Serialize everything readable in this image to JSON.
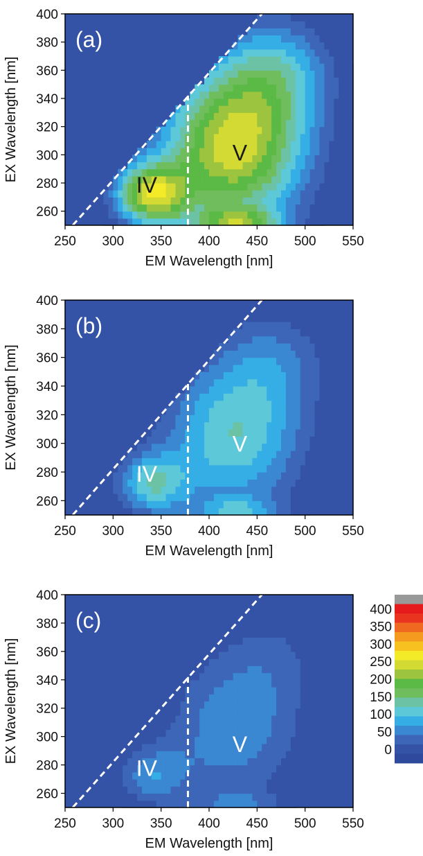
{
  "chart_data": {
    "type": "heatmap",
    "description_kind": "excitation-emission contour maps",
    "xlabel": "EM Wavelength [nm]",
    "ylabel": "EX Wavelength [nm]",
    "xlim": [
      250,
      550
    ],
    "ylim": [
      250,
      400
    ],
    "xticks": [
      250,
      300,
      350,
      400,
      450,
      500,
      550
    ],
    "yticks": [
      260,
      280,
      300,
      320,
      340,
      360,
      380,
      400
    ],
    "divider": {
      "diagonal_from": [
        258,
        250
      ],
      "diagonal_to": [
        455,
        400
      ],
      "vertical_x": 378,
      "vertical_from_y": 250,
      "vertical_to_y": 342
    },
    "colorbar": {
      "ticks": [
        0,
        50,
        100,
        150,
        200,
        250,
        300,
        350,
        400
      ],
      "colors": [
        "#2f4a9c",
        "#3453a6",
        "#3d66b8",
        "#3a87d2",
        "#35aee6",
        "#5cc8d8",
        "#6cc2a4",
        "#6fbd5c",
        "#5bb945",
        "#9cc43e",
        "#d4da34",
        "#f3ea28",
        "#f7c21f",
        "#f39a1f",
        "#ef6a20",
        "#e93520",
        "#e51a1c",
        "#999999"
      ]
    },
    "panels": [
      {
        "label": "(a)",
        "regions": [
          {
            "name": "IV",
            "x": 335,
            "y": 279
          },
          {
            "name": "V",
            "x": 432,
            "y": 302
          }
        ],
        "intensity_scale": 1.0
      },
      {
        "label": "(b)",
        "regions": [
          {
            "name": "IV",
            "x": 335,
            "y": 279
          },
          {
            "name": "V",
            "x": 432,
            "y": 300
          }
        ],
        "intensity_scale": 0.55
      },
      {
        "label": "(c)",
        "regions": [
          {
            "name": "IV",
            "x": 335,
            "y": 278
          },
          {
            "name": "V",
            "x": 432,
            "y": 295
          }
        ],
        "intensity_scale": 0.35
      }
    ]
  }
}
